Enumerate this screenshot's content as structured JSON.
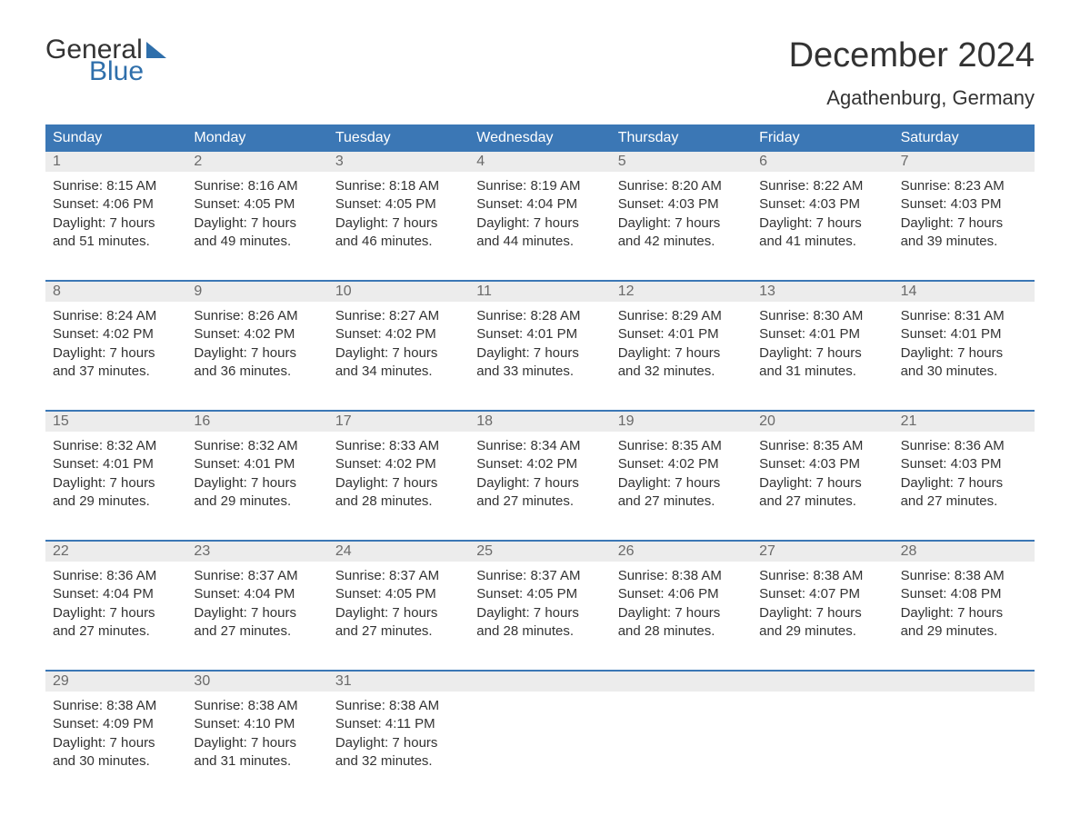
{
  "logo": {
    "text1": "General",
    "text2": "Blue",
    "triangle_color": "#2f6fab"
  },
  "title": "December 2024",
  "location": "Agathenburg, Germany",
  "colors": {
    "header_bg": "#3b77b5",
    "header_text": "#ffffff",
    "daynum_bg": "#ececec",
    "daynum_text": "#6a6a6a",
    "body_text": "#333333",
    "week_border": "#3b77b5",
    "page_bg": "#ffffff"
  },
  "typography": {
    "title_fontsize": 38,
    "location_fontsize": 22,
    "dayheader_fontsize": 16,
    "daynum_fontsize": 16,
    "body_fontsize": 15
  },
  "layout": {
    "columns": 7,
    "rows": 5,
    "cell_lines": 4
  },
  "day_names": [
    "Sunday",
    "Monday",
    "Tuesday",
    "Wednesday",
    "Thursday",
    "Friday",
    "Saturday"
  ],
  "weeks": [
    [
      {
        "n": "1",
        "sunrise": "8:15 AM",
        "sunset": "4:06 PM",
        "daylight_h": 7,
        "daylight_m": 51
      },
      {
        "n": "2",
        "sunrise": "8:16 AM",
        "sunset": "4:05 PM",
        "daylight_h": 7,
        "daylight_m": 49
      },
      {
        "n": "3",
        "sunrise": "8:18 AM",
        "sunset": "4:05 PM",
        "daylight_h": 7,
        "daylight_m": 46
      },
      {
        "n": "4",
        "sunrise": "8:19 AM",
        "sunset": "4:04 PM",
        "daylight_h": 7,
        "daylight_m": 44
      },
      {
        "n": "5",
        "sunrise": "8:20 AM",
        "sunset": "4:03 PM",
        "daylight_h": 7,
        "daylight_m": 42
      },
      {
        "n": "6",
        "sunrise": "8:22 AM",
        "sunset": "4:03 PM",
        "daylight_h": 7,
        "daylight_m": 41
      },
      {
        "n": "7",
        "sunrise": "8:23 AM",
        "sunset": "4:03 PM",
        "daylight_h": 7,
        "daylight_m": 39
      }
    ],
    [
      {
        "n": "8",
        "sunrise": "8:24 AM",
        "sunset": "4:02 PM",
        "daylight_h": 7,
        "daylight_m": 37
      },
      {
        "n": "9",
        "sunrise": "8:26 AM",
        "sunset": "4:02 PM",
        "daylight_h": 7,
        "daylight_m": 36
      },
      {
        "n": "10",
        "sunrise": "8:27 AM",
        "sunset": "4:02 PM",
        "daylight_h": 7,
        "daylight_m": 34
      },
      {
        "n": "11",
        "sunrise": "8:28 AM",
        "sunset": "4:01 PM",
        "daylight_h": 7,
        "daylight_m": 33
      },
      {
        "n": "12",
        "sunrise": "8:29 AM",
        "sunset": "4:01 PM",
        "daylight_h": 7,
        "daylight_m": 32
      },
      {
        "n": "13",
        "sunrise": "8:30 AM",
        "sunset": "4:01 PM",
        "daylight_h": 7,
        "daylight_m": 31
      },
      {
        "n": "14",
        "sunrise": "8:31 AM",
        "sunset": "4:01 PM",
        "daylight_h": 7,
        "daylight_m": 30
      }
    ],
    [
      {
        "n": "15",
        "sunrise": "8:32 AM",
        "sunset": "4:01 PM",
        "daylight_h": 7,
        "daylight_m": 29
      },
      {
        "n": "16",
        "sunrise": "8:32 AM",
        "sunset": "4:01 PM",
        "daylight_h": 7,
        "daylight_m": 29
      },
      {
        "n": "17",
        "sunrise": "8:33 AM",
        "sunset": "4:02 PM",
        "daylight_h": 7,
        "daylight_m": 28
      },
      {
        "n": "18",
        "sunrise": "8:34 AM",
        "sunset": "4:02 PM",
        "daylight_h": 7,
        "daylight_m": 27
      },
      {
        "n": "19",
        "sunrise": "8:35 AM",
        "sunset": "4:02 PM",
        "daylight_h": 7,
        "daylight_m": 27
      },
      {
        "n": "20",
        "sunrise": "8:35 AM",
        "sunset": "4:03 PM",
        "daylight_h": 7,
        "daylight_m": 27
      },
      {
        "n": "21",
        "sunrise": "8:36 AM",
        "sunset": "4:03 PM",
        "daylight_h": 7,
        "daylight_m": 27
      }
    ],
    [
      {
        "n": "22",
        "sunrise": "8:36 AM",
        "sunset": "4:04 PM",
        "daylight_h": 7,
        "daylight_m": 27
      },
      {
        "n": "23",
        "sunrise": "8:37 AM",
        "sunset": "4:04 PM",
        "daylight_h": 7,
        "daylight_m": 27
      },
      {
        "n": "24",
        "sunrise": "8:37 AM",
        "sunset": "4:05 PM",
        "daylight_h": 7,
        "daylight_m": 27
      },
      {
        "n": "25",
        "sunrise": "8:37 AM",
        "sunset": "4:05 PM",
        "daylight_h": 7,
        "daylight_m": 28
      },
      {
        "n": "26",
        "sunrise": "8:38 AM",
        "sunset": "4:06 PM",
        "daylight_h": 7,
        "daylight_m": 28
      },
      {
        "n": "27",
        "sunrise": "8:38 AM",
        "sunset": "4:07 PM",
        "daylight_h": 7,
        "daylight_m": 29
      },
      {
        "n": "28",
        "sunrise": "8:38 AM",
        "sunset": "4:08 PM",
        "daylight_h": 7,
        "daylight_m": 29
      }
    ],
    [
      {
        "n": "29",
        "sunrise": "8:38 AM",
        "sunset": "4:09 PM",
        "daylight_h": 7,
        "daylight_m": 30
      },
      {
        "n": "30",
        "sunrise": "8:38 AM",
        "sunset": "4:10 PM",
        "daylight_h": 7,
        "daylight_m": 31
      },
      {
        "n": "31",
        "sunrise": "8:38 AM",
        "sunset": "4:11 PM",
        "daylight_h": 7,
        "daylight_m": 32
      },
      null,
      null,
      null,
      null
    ]
  ],
  "labels": {
    "sunrise": "Sunrise:",
    "sunset": "Sunset:",
    "daylight_prefix": "Daylight:",
    "hours_word": "hours",
    "and_word": "and",
    "minutes_word": "minutes."
  }
}
